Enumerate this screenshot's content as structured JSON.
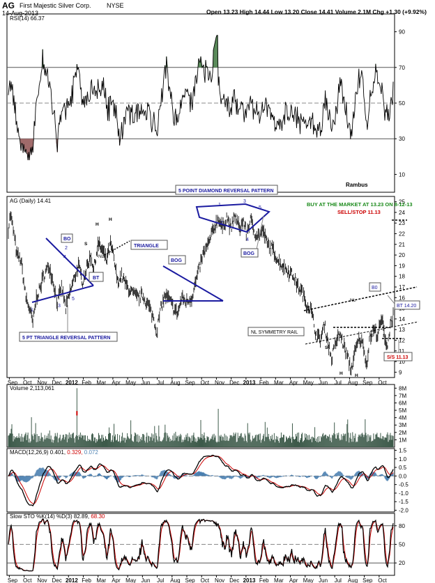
{
  "header": {
    "symbol": "AG",
    "company": "First Majestic Silver Corp.",
    "exchange": "NYSE",
    "date": "14-Aug-2013",
    "quote": "Open 13.23   High 14.44   Low 13.20   Close 14.41   Volume 2.1M   Chg +1.30 (+9.92%)"
  },
  "x_axis": {
    "labels": [
      "Sep",
      "Oct",
      "Nov",
      "Dec",
      "2012",
      "Feb",
      "Mar",
      "Apr",
      "May",
      "Jun",
      "Jul",
      "Aug",
      "Sep",
      "Oct",
      "Nov",
      "Dec",
      "2013",
      "Feb",
      "Mar",
      "Apr",
      "May",
      "Jun",
      "Jul",
      "Aug",
      "Sep",
      "Oct"
    ],
    "bold_labels": [
      "2012",
      "2013"
    ]
  },
  "panels": {
    "rsi": {
      "label": "RSI(14) 66.37",
      "ticks": [
        "90",
        "70",
        "50",
        "30",
        "10"
      ],
      "credit": "Rambus"
    },
    "price": {
      "label": "AG (Daily) 14.41",
      "ticks": [
        "25",
        "24",
        "23",
        "22",
        "21",
        "20",
        "19",
        "18",
        "17",
        "16",
        "15",
        "14",
        "13",
        "12",
        "11",
        "10",
        "9"
      ]
    },
    "volume": {
      "label": "Volume 2,113,061",
      "ticks": [
        "8M",
        "7M",
        "6M",
        "5M",
        "4M",
        "3M",
        "2M",
        "1M"
      ]
    },
    "macd": {
      "label_main": "MACD(12,26,9) 0.401,",
      "label_sig": "0.329,",
      "label_hist": "0.072",
      "ticks": [
        "1.5",
        "1.0",
        "0.5",
        "0.0",
        "-0.5",
        "-1.0",
        "-1.5",
        "-2.0"
      ]
    },
    "sto": {
      "label_main": "Slow STO %K(14) %D(3) 82.89,",
      "label_d": "68.30",
      "ticks": [
        "80",
        "50",
        "20"
      ]
    }
  },
  "annotations": {
    "buy_text": "BUY AT THE MARKET AT 13.23 ON 8-12-13",
    "stop_text": "SELL/STOP 11.13",
    "diamond_title": "5 POINT DIAMOND REVERSAL PATTERN",
    "triangle_label": "TRIANGLE",
    "bo_1": "BO",
    "bt_1": "BT",
    "bog_1": "BOG",
    "bog_2": "BOG",
    "bo_2": "B0",
    "bt_2": "BT 14.20",
    "pt_triangle": "5 PT TRIANGLE REVERSAL PATTERN",
    "nl_symmetry": "NL SYMMETRY RAIL",
    "ss": "S/S 11.13",
    "nl_a": "NL",
    "nl_b": "NL",
    "h1": "H",
    "h2": "H",
    "h3": "H",
    "h4": "H",
    "s1": "S",
    "s2": "S",
    "s3": "S",
    "s4": "S",
    "s5": "S",
    "t1": "1",
    "t2": "2",
    "t3": "3",
    "t4": "4",
    "t5": "5",
    "d1": "1",
    "d2": "2",
    "d3": "3",
    "d4": "4",
    "d5": "5"
  },
  "colors": {
    "rsi_fill": "#5a8a5a",
    "rsi_fill_low": "#a06a6a",
    "volume_bar": "#3d5a4a",
    "volume_up": "#cc0000",
    "macd_hist": "#4a7fb0",
    "macd_signal": "#cc0000",
    "pattern_line": "#1a1aa0",
    "buy_text": "#1a8a1a",
    "stop_text": "#cc0000"
  },
  "chart_data": {
    "type": "line",
    "title": "AG (Daily) 14.41",
    "x_range": [
      "Sep 2011",
      "Oct 2013"
    ],
    "price_ylim": [
      8.5,
      25.5
    ],
    "price_path": [
      [
        0,
        22.5
      ],
      [
        3,
        23.8
      ],
      [
        8,
        22
      ],
      [
        12,
        20
      ],
      [
        18,
        19.5
      ],
      [
        25,
        16
      ],
      [
        30,
        15
      ],
      [
        35,
        13.6
      ],
      [
        40,
        16
      ],
      [
        46,
        17
      ],
      [
        50,
        18
      ],
      [
        58,
        19
      ],
      [
        64,
        17.5
      ],
      [
        70,
        15.5
      ],
      [
        76,
        17
      ],
      [
        82,
        15
      ],
      [
        88,
        16.5
      ],
      [
        94,
        17.8
      ],
      [
        100,
        19
      ],
      [
        106,
        17.5
      ],
      [
        112,
        18.8
      ],
      [
        118,
        20
      ],
      [
        122,
        18.6
      ],
      [
        128,
        21
      ],
      [
        134,
        20.5
      ],
      [
        140,
        19.5
      ],
      [
        146,
        21
      ],
      [
        150,
        20
      ],
      [
        156,
        17.5
      ],
      [
        162,
        18
      ],
      [
        170,
        17
      ],
      [
        176,
        16.5
      ],
      [
        184,
        16
      ],
      [
        192,
        16.2
      ],
      [
        200,
        15.3
      ],
      [
        208,
        14
      ],
      [
        212,
        12.8
      ],
      [
        218,
        15
      ],
      [
        224,
        16.2
      ],
      [
        230,
        15.8
      ],
      [
        236,
        15
      ],
      [
        242,
        14.5
      ],
      [
        248,
        16
      ],
      [
        254,
        15.6
      ],
      [
        262,
        16
      ],
      [
        270,
        18
      ],
      [
        278,
        20
      ],
      [
        286,
        21
      ],
      [
        292,
        22.2
      ],
      [
        300,
        23.5
      ],
      [
        306,
        22.5
      ],
      [
        312,
        23.6
      ],
      [
        318,
        22.4
      ],
      [
        324,
        23.7
      ],
      [
        330,
        22.5
      ],
      [
        336,
        23.2
      ],
      [
        340,
        22
      ],
      [
        346,
        23.3
      ],
      [
        352,
        22.1
      ],
      [
        358,
        21.8
      ],
      [
        364,
        22.3
      ],
      [
        370,
        21
      ],
      [
        378,
        20.5
      ],
      [
        386,
        19.4
      ],
      [
        392,
        19
      ],
      [
        400,
        18.5
      ],
      [
        408,
        18
      ],
      [
        414,
        17
      ],
      [
        420,
        16.5
      ],
      [
        426,
        15.4
      ],
      [
        432,
        15
      ],
      [
        436,
        13.8
      ],
      [
        440,
        12.5
      ],
      [
        446,
        12
      ],
      [
        452,
        13.5
      ],
      [
        458,
        11.5
      ],
      [
        462,
        10.2
      ],
      [
        468,
        11.8
      ],
      [
        474,
        12.6
      ],
      [
        480,
        11.4
      ],
      [
        486,
        10.2
      ],
      [
        490,
        9.2
      ],
      [
        496,
        11
      ],
      [
        502,
        12.2
      ],
      [
        508,
        11.4
      ],
      [
        512,
        9.6
      ],
      [
        516,
        12
      ],
      [
        522,
        13
      ],
      [
        528,
        12.5
      ],
      [
        534,
        14
      ],
      [
        538,
        12.3
      ],
      [
        542,
        11.4
      ],
      [
        546,
        13.5
      ],
      [
        550,
        14.4
      ]
    ],
    "rsi_ylim": [
      0,
      100
    ],
    "volume_spike_m": 8,
    "macd_ylim": [
      -2.1,
      1.6
    ],
    "sto_ylim": [
      0,
      100
    ],
    "markers": {
      "buy_price": 13.23,
      "stop_price": 11.13,
      "bt_price": 14.2
    },
    "series": [
      {
        "name": "AG (Daily)"
      },
      {
        "name": "RSI(14)"
      },
      {
        "name": "Volume"
      },
      {
        "name": "MACD(12,26,9)"
      },
      {
        "name": "Slow STO %K(14) %D(3)"
      }
    ]
  }
}
